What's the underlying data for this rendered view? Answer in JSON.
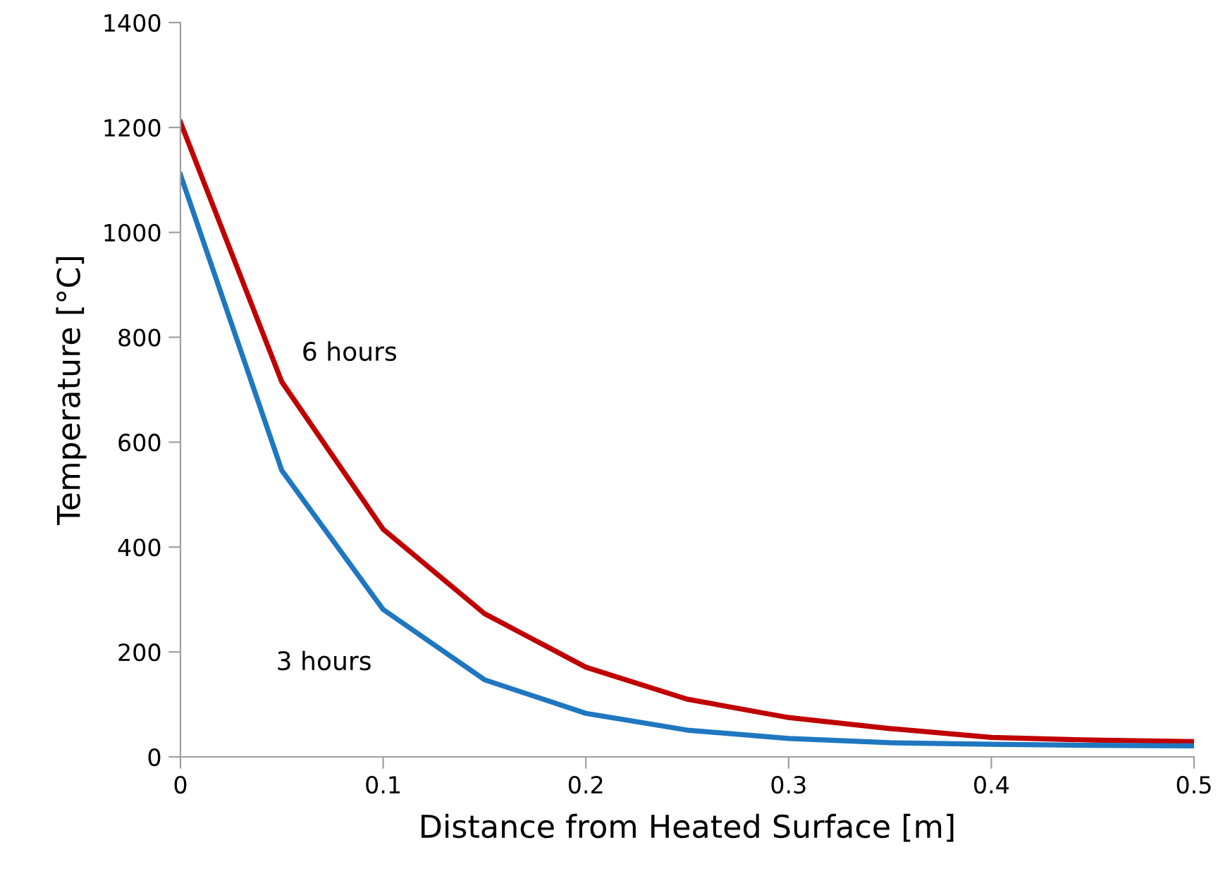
{
  "chart_data": {
    "type": "line",
    "xlabel": "Distance from Heated Surface [m]",
    "ylabel": "Temperature [°C]",
    "x": [
      0,
      0.05,
      0.1,
      0.15,
      0.2,
      0.25,
      0.3,
      0.35,
      0.4,
      0.45,
      0.5
    ],
    "series": [
      {
        "name": "6 hours",
        "color": "#c00000",
        "values": [
          1210,
          715,
          434,
          273,
          171,
          110,
          75,
          54,
          37,
          32,
          29
        ]
      },
      {
        "name": "3 hours",
        "color": "#1f77c0",
        "values": [
          1110,
          546,
          281,
          147,
          83,
          51,
          35,
          27,
          24,
          22,
          21
        ]
      }
    ],
    "xlim": [
      0,
      0.5
    ],
    "xticks": [
      0,
      0.1,
      0.2,
      0.3,
      0.4,
      0.5
    ],
    "ylim": [
      0,
      1400
    ],
    "yticks": [
      0,
      200,
      400,
      600,
      800,
      1000,
      1200,
      1400
    ],
    "grid": false,
    "legend": false,
    "marker": "none",
    "line_style": "solid"
  }
}
